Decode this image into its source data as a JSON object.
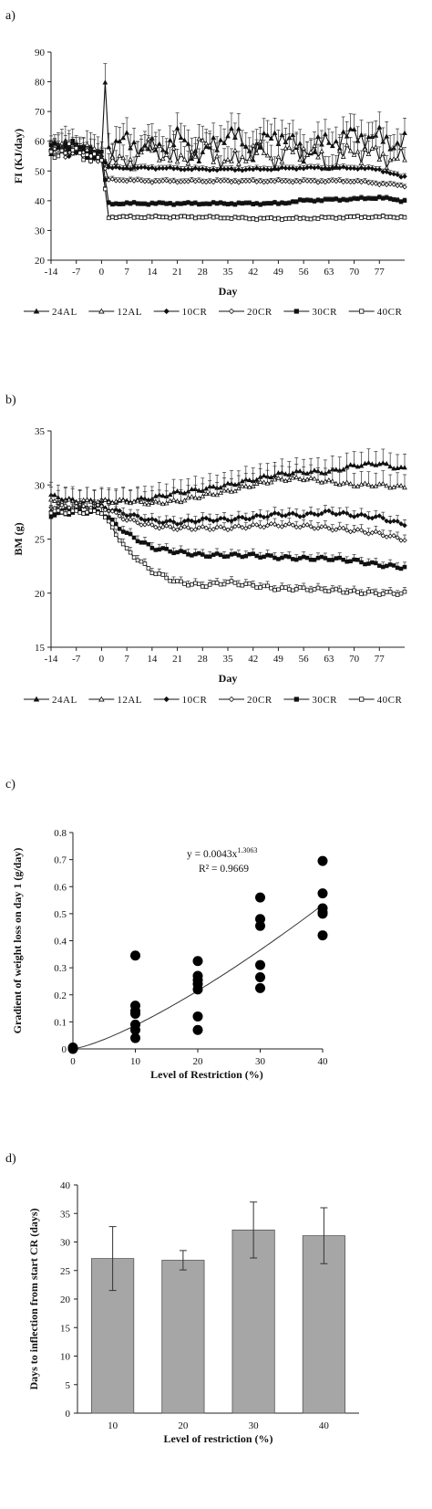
{
  "chart_data": [
    {
      "panel": "a)",
      "type": "line",
      "xlabel": "Day",
      "ylabel": "FI (KJ/day)",
      "ylim": [
        20,
        90
      ],
      "yticks": [
        "20",
        "30",
        "40",
        "50",
        "60",
        "70",
        "80",
        "90"
      ],
      "xlim": [
        -14,
        84
      ],
      "xticks": [
        "-14",
        "-7",
        "0",
        "7",
        "14",
        "21",
        "28",
        "35",
        "42",
        "49",
        "56",
        "63",
        "70",
        "77"
      ],
      "grid": false,
      "legend": "bottom",
      "series": [
        {
          "name": "24AL",
          "marker": "filled-triangle",
          "key": [
            [
              -14,
              58
            ],
            [
              -7,
              58
            ],
            [
              0,
              55
            ],
            [
              1,
              80
            ],
            [
              2,
              58
            ],
            [
              7,
              60
            ],
            [
              14,
              57
            ],
            [
              21,
              61
            ],
            [
              28,
              55
            ],
            [
              35,
              63
            ],
            [
              42,
              57
            ],
            [
              49,
              63
            ],
            [
              56,
              56
            ],
            [
              63,
              60
            ],
            [
              70,
              62
            ],
            [
              77,
              61
            ],
            [
              83,
              59
            ]
          ]
        },
        {
          "name": "12AL",
          "marker": "open-triangle",
          "key": [
            [
              -14,
              57
            ],
            [
              -7,
              58
            ],
            [
              0,
              55
            ],
            [
              2,
              52
            ],
            [
              7,
              53
            ],
            [
              14,
              58
            ],
            [
              21,
              53
            ],
            [
              28,
              59
            ],
            [
              35,
              52
            ],
            [
              42,
              57
            ],
            [
              49,
              54
            ],
            [
              56,
              58
            ],
            [
              63,
              52
            ],
            [
              70,
              57
            ],
            [
              77,
              55
            ],
            [
              83,
              54
            ]
          ]
        },
        {
          "name": "10CR",
          "marker": "filled-diamond",
          "key": [
            [
              -14,
              58
            ],
            [
              -7,
              57
            ],
            [
              0,
              55
            ],
            [
              2,
              51
            ],
            [
              14,
              51
            ],
            [
              28,
              50.5
            ],
            [
              42,
              50.5
            ],
            [
              56,
              51
            ],
            [
              70,
              51
            ],
            [
              77,
              50.5
            ],
            [
              83,
              48
            ]
          ]
        },
        {
          "name": "20CR",
          "marker": "open-diamond",
          "key": [
            [
              -14,
              57
            ],
            [
              -7,
              57
            ],
            [
              0,
              54
            ],
            [
              2,
              47
            ],
            [
              14,
              46.5
            ],
            [
              28,
              46.5
            ],
            [
              42,
              46.5
            ],
            [
              56,
              46.5
            ],
            [
              70,
              46.5
            ],
            [
              83,
              45
            ]
          ]
        },
        {
          "name": "30CR",
          "marker": "filled-square",
          "key": [
            [
              -14,
              59
            ],
            [
              -7,
              58
            ],
            [
              0,
              55
            ],
            [
              2,
              39
            ],
            [
              14,
              39
            ],
            [
              28,
              39
            ],
            [
              42,
              39
            ],
            [
              49,
              39
            ],
            [
              56,
              40
            ],
            [
              70,
              40.5
            ],
            [
              77,
              41
            ],
            [
              83,
              40
            ]
          ]
        },
        {
          "name": "40CR",
          "marker": "open-square",
          "key": [
            [
              -14,
              56
            ],
            [
              -7,
              57
            ],
            [
              0,
              53
            ],
            [
              2,
              34.5
            ],
            [
              14,
              34.5
            ],
            [
              28,
              34.5
            ],
            [
              42,
              34
            ],
            [
              56,
              34
            ],
            [
              70,
              34.5
            ],
            [
              83,
              34.5
            ]
          ]
        }
      ]
    },
    {
      "panel": "b)",
      "type": "line",
      "xlabel": "Day",
      "ylabel": "BM (g)",
      "ylim": [
        15,
        35
      ],
      "yticks": [
        "15",
        "20",
        "25",
        "30",
        "35"
      ],
      "xlim": [
        -14,
        84
      ],
      "xticks": [
        "-14",
        "-7",
        "0",
        "7",
        "14",
        "21",
        "28",
        "35",
        "42",
        "49",
        "56",
        "63",
        "70",
        "77"
      ],
      "grid": false,
      "legend": "bottom",
      "series": [
        {
          "name": "24AL",
          "marker": "filled-triangle",
          "key": [
            [
              -14,
              29
            ],
            [
              -7,
              28.5
            ],
            [
              0,
              28.5
            ],
            [
              7,
              28.5
            ],
            [
              14,
              28.8
            ],
            [
              21,
              29.3
            ],
            [
              28,
              29.6
            ],
            [
              35,
              30
            ],
            [
              42,
              30.5
            ],
            [
              49,
              31
            ],
            [
              56,
              31.2
            ],
            [
              63,
              31.2
            ],
            [
              70,
              31.8
            ],
            [
              77,
              32
            ],
            [
              83,
              31.5
            ]
          ]
        },
        {
          "name": "12AL",
          "marker": "open-triangle",
          "key": [
            [
              -14,
              28.5
            ],
            [
              -7,
              28.5
            ],
            [
              0,
              28.5
            ],
            [
              7,
              28.5
            ],
            [
              14,
              28.3
            ],
            [
              21,
              28.5
            ],
            [
              28,
              29
            ],
            [
              35,
              29.4
            ],
            [
              42,
              30
            ],
            [
              49,
              30.5
            ],
            [
              56,
              30.6
            ],
            [
              63,
              30.3
            ],
            [
              70,
              30
            ],
            [
              77,
              30
            ],
            [
              83,
              29.8
            ]
          ]
        },
        {
          "name": "10CR",
          "marker": "filled-diamond",
          "key": [
            [
              -14,
              27.5
            ],
            [
              -7,
              27.8
            ],
            [
              0,
              28
            ],
            [
              7,
              27.3
            ],
            [
              14,
              26.7
            ],
            [
              21,
              26.5
            ],
            [
              28,
              26.8
            ],
            [
              35,
              26.8
            ],
            [
              42,
              27
            ],
            [
              49,
              27.3
            ],
            [
              56,
              27.2
            ],
            [
              63,
              27.5
            ],
            [
              70,
              27.2
            ],
            [
              77,
              27
            ],
            [
              83,
              26.4
            ]
          ]
        },
        {
          "name": "20CR",
          "marker": "open-diamond",
          "key": [
            [
              -14,
              28
            ],
            [
              -7,
              28
            ],
            [
              0,
              28
            ],
            [
              7,
              26.8
            ],
            [
              14,
              26.2
            ],
            [
              21,
              26
            ],
            [
              28,
              26
            ],
            [
              35,
              26
            ],
            [
              42,
              26.2
            ],
            [
              49,
              26.3
            ],
            [
              56,
              26.2
            ],
            [
              63,
              26
            ],
            [
              70,
              25.8
            ],
            [
              77,
              25.5
            ],
            [
              83,
              25
            ]
          ]
        },
        {
          "name": "30CR",
          "marker": "filled-square",
          "key": [
            [
              -14,
              27.2
            ],
            [
              -7,
              27.5
            ],
            [
              0,
              27.5
            ],
            [
              7,
              25.5
            ],
            [
              14,
              24.2
            ],
            [
              21,
              23.8
            ],
            [
              28,
              23.5
            ],
            [
              35,
              23.5
            ],
            [
              42,
              23.5
            ],
            [
              49,
              23.3
            ],
            [
              56,
              23.2
            ],
            [
              63,
              23.2
            ],
            [
              70,
              23
            ],
            [
              77,
              22.6
            ],
            [
              83,
              22.4
            ]
          ]
        },
        {
          "name": "40CR",
          "marker": "open-square",
          "key": [
            [
              -14,
              27.5
            ],
            [
              -7,
              27.5
            ],
            [
              0,
              27.5
            ],
            [
              7,
              24
            ],
            [
              14,
              22
            ],
            [
              21,
              21
            ],
            [
              28,
              20.7
            ],
            [
              35,
              21
            ],
            [
              42,
              20.7
            ],
            [
              49,
              20.4
            ],
            [
              56,
              20.4
            ],
            [
              63,
              20.3
            ],
            [
              70,
              20.1
            ],
            [
              77,
              20
            ],
            [
              83,
              20
            ]
          ]
        }
      ]
    },
    {
      "panel": "c)",
      "type": "scatter",
      "xlabel": "Level of Restriction (%)",
      "ylabel": "Gradient  of weight loss on day 1  (g/day)",
      "ylim": [
        0,
        0.8
      ],
      "yticks": [
        "0",
        "0.1",
        "0.2",
        "0.3",
        "0.4",
        "0.5",
        "0.6",
        "0.7",
        "0.8"
      ],
      "xlim": [
        0,
        40
      ],
      "xticks": [
        "0",
        "10",
        "20",
        "30",
        "40"
      ],
      "grid": false,
      "equation": "y = 0.0043x",
      "equation_exponent": "1.3063",
      "r2": "R² = 0.9669",
      "fit": {
        "type": "power",
        "a": 0.0043,
        "b": 1.3063
      },
      "points": [
        [
          0,
          0
        ],
        [
          0,
          0.005
        ],
        [
          10,
          0.345
        ],
        [
          10,
          0.16
        ],
        [
          10,
          0.14
        ],
        [
          10,
          0.13
        ],
        [
          10,
          0.09
        ],
        [
          10,
          0.07
        ],
        [
          10,
          0.04
        ],
        [
          20,
          0.325
        ],
        [
          20,
          0.27
        ],
        [
          20,
          0.255
        ],
        [
          20,
          0.24
        ],
        [
          20,
          0.22
        ],
        [
          20,
          0.12
        ],
        [
          20,
          0.07
        ],
        [
          30,
          0.56
        ],
        [
          30,
          0.48
        ],
        [
          30,
          0.455
        ],
        [
          30,
          0.31
        ],
        [
          30,
          0.265
        ],
        [
          30,
          0.225
        ],
        [
          40,
          0.695
        ],
        [
          40,
          0.575
        ],
        [
          40,
          0.52
        ],
        [
          40,
          0.505
        ],
        [
          40,
          0.5
        ],
        [
          40,
          0.42
        ]
      ]
    },
    {
      "panel": "d)",
      "type": "bar",
      "xlabel": "Level of restriction  (%)",
      "ylabel": "Days to inflection from start CR (days)",
      "ylim": [
        0,
        40
      ],
      "yticks": [
        "0",
        "5",
        "10",
        "15",
        "20",
        "25",
        "30",
        "35",
        "40"
      ],
      "categories": [
        "10",
        "20",
        "30",
        "40"
      ],
      "values": [
        27.1,
        26.8,
        32.1,
        31.1
      ],
      "errors": [
        5.6,
        1.7,
        4.9,
        4.9
      ],
      "bar_color": "#a6a6a6",
      "grid": false
    }
  ]
}
